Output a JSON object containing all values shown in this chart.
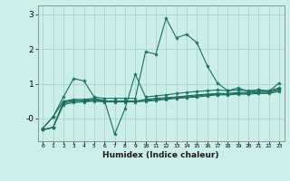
{
  "xlabel": "Humidex (Indice chaleur)",
  "background_color": "#cceee8",
  "grid_color": "#aad4cc",
  "line_color": "#1a6e62",
  "x": [
    0,
    1,
    2,
    3,
    4,
    5,
    6,
    7,
    8,
    9,
    10,
    11,
    12,
    13,
    14,
    15,
    16,
    17,
    18,
    19,
    20,
    21,
    22,
    23
  ],
  "lines": [
    [
      -0.28,
      0.05,
      0.62,
      1.15,
      1.08,
      0.62,
      0.58,
      0.58,
      0.58,
      0.58,
      1.92,
      1.85,
      2.88,
      2.32,
      2.42,
      2.18,
      1.52,
      1.02,
      0.8,
      0.88,
      0.78,
      0.82,
      0.78,
      1.02
    ],
    [
      -0.28,
      0.05,
      0.5,
      0.55,
      0.55,
      0.58,
      0.52,
      -0.45,
      0.28,
      1.28,
      0.62,
      0.65,
      0.68,
      0.72,
      0.75,
      0.78,
      0.8,
      0.82,
      0.8,
      0.82,
      0.8,
      0.82,
      0.8,
      0.88
    ],
    [
      -0.32,
      -0.25,
      0.48,
      0.52,
      0.52,
      0.55,
      0.5,
      0.5,
      0.5,
      0.5,
      0.55,
      0.58,
      0.6,
      0.62,
      0.65,
      0.68,
      0.7,
      0.72,
      0.72,
      0.75,
      0.75,
      0.78,
      0.78,
      0.85
    ],
    [
      -0.32,
      -0.26,
      0.44,
      0.5,
      0.5,
      0.52,
      0.5,
      0.5,
      0.5,
      0.5,
      0.52,
      0.55,
      0.58,
      0.6,
      0.62,
      0.65,
      0.68,
      0.7,
      0.7,
      0.72,
      0.72,
      0.75,
      0.75,
      0.82
    ],
    [
      -0.32,
      -0.26,
      0.4,
      0.46,
      0.48,
      0.5,
      0.48,
      0.48,
      0.48,
      0.48,
      0.5,
      0.52,
      0.55,
      0.58,
      0.6,
      0.62,
      0.65,
      0.68,
      0.68,
      0.7,
      0.7,
      0.72,
      0.72,
      0.78
    ]
  ],
  "ylim": [
    -0.65,
    3.25
  ],
  "xlim": [
    -0.5,
    23.5
  ],
  "yticks": [
    0.0,
    1.0,
    2.0,
    3.0
  ],
  "ytick_labels": [
    "-0",
    "1",
    "2",
    "3"
  ],
  "xticks": [
    0,
    1,
    2,
    3,
    4,
    5,
    6,
    7,
    8,
    9,
    10,
    11,
    12,
    13,
    14,
    15,
    16,
    17,
    18,
    19,
    20,
    21,
    22,
    23
  ]
}
